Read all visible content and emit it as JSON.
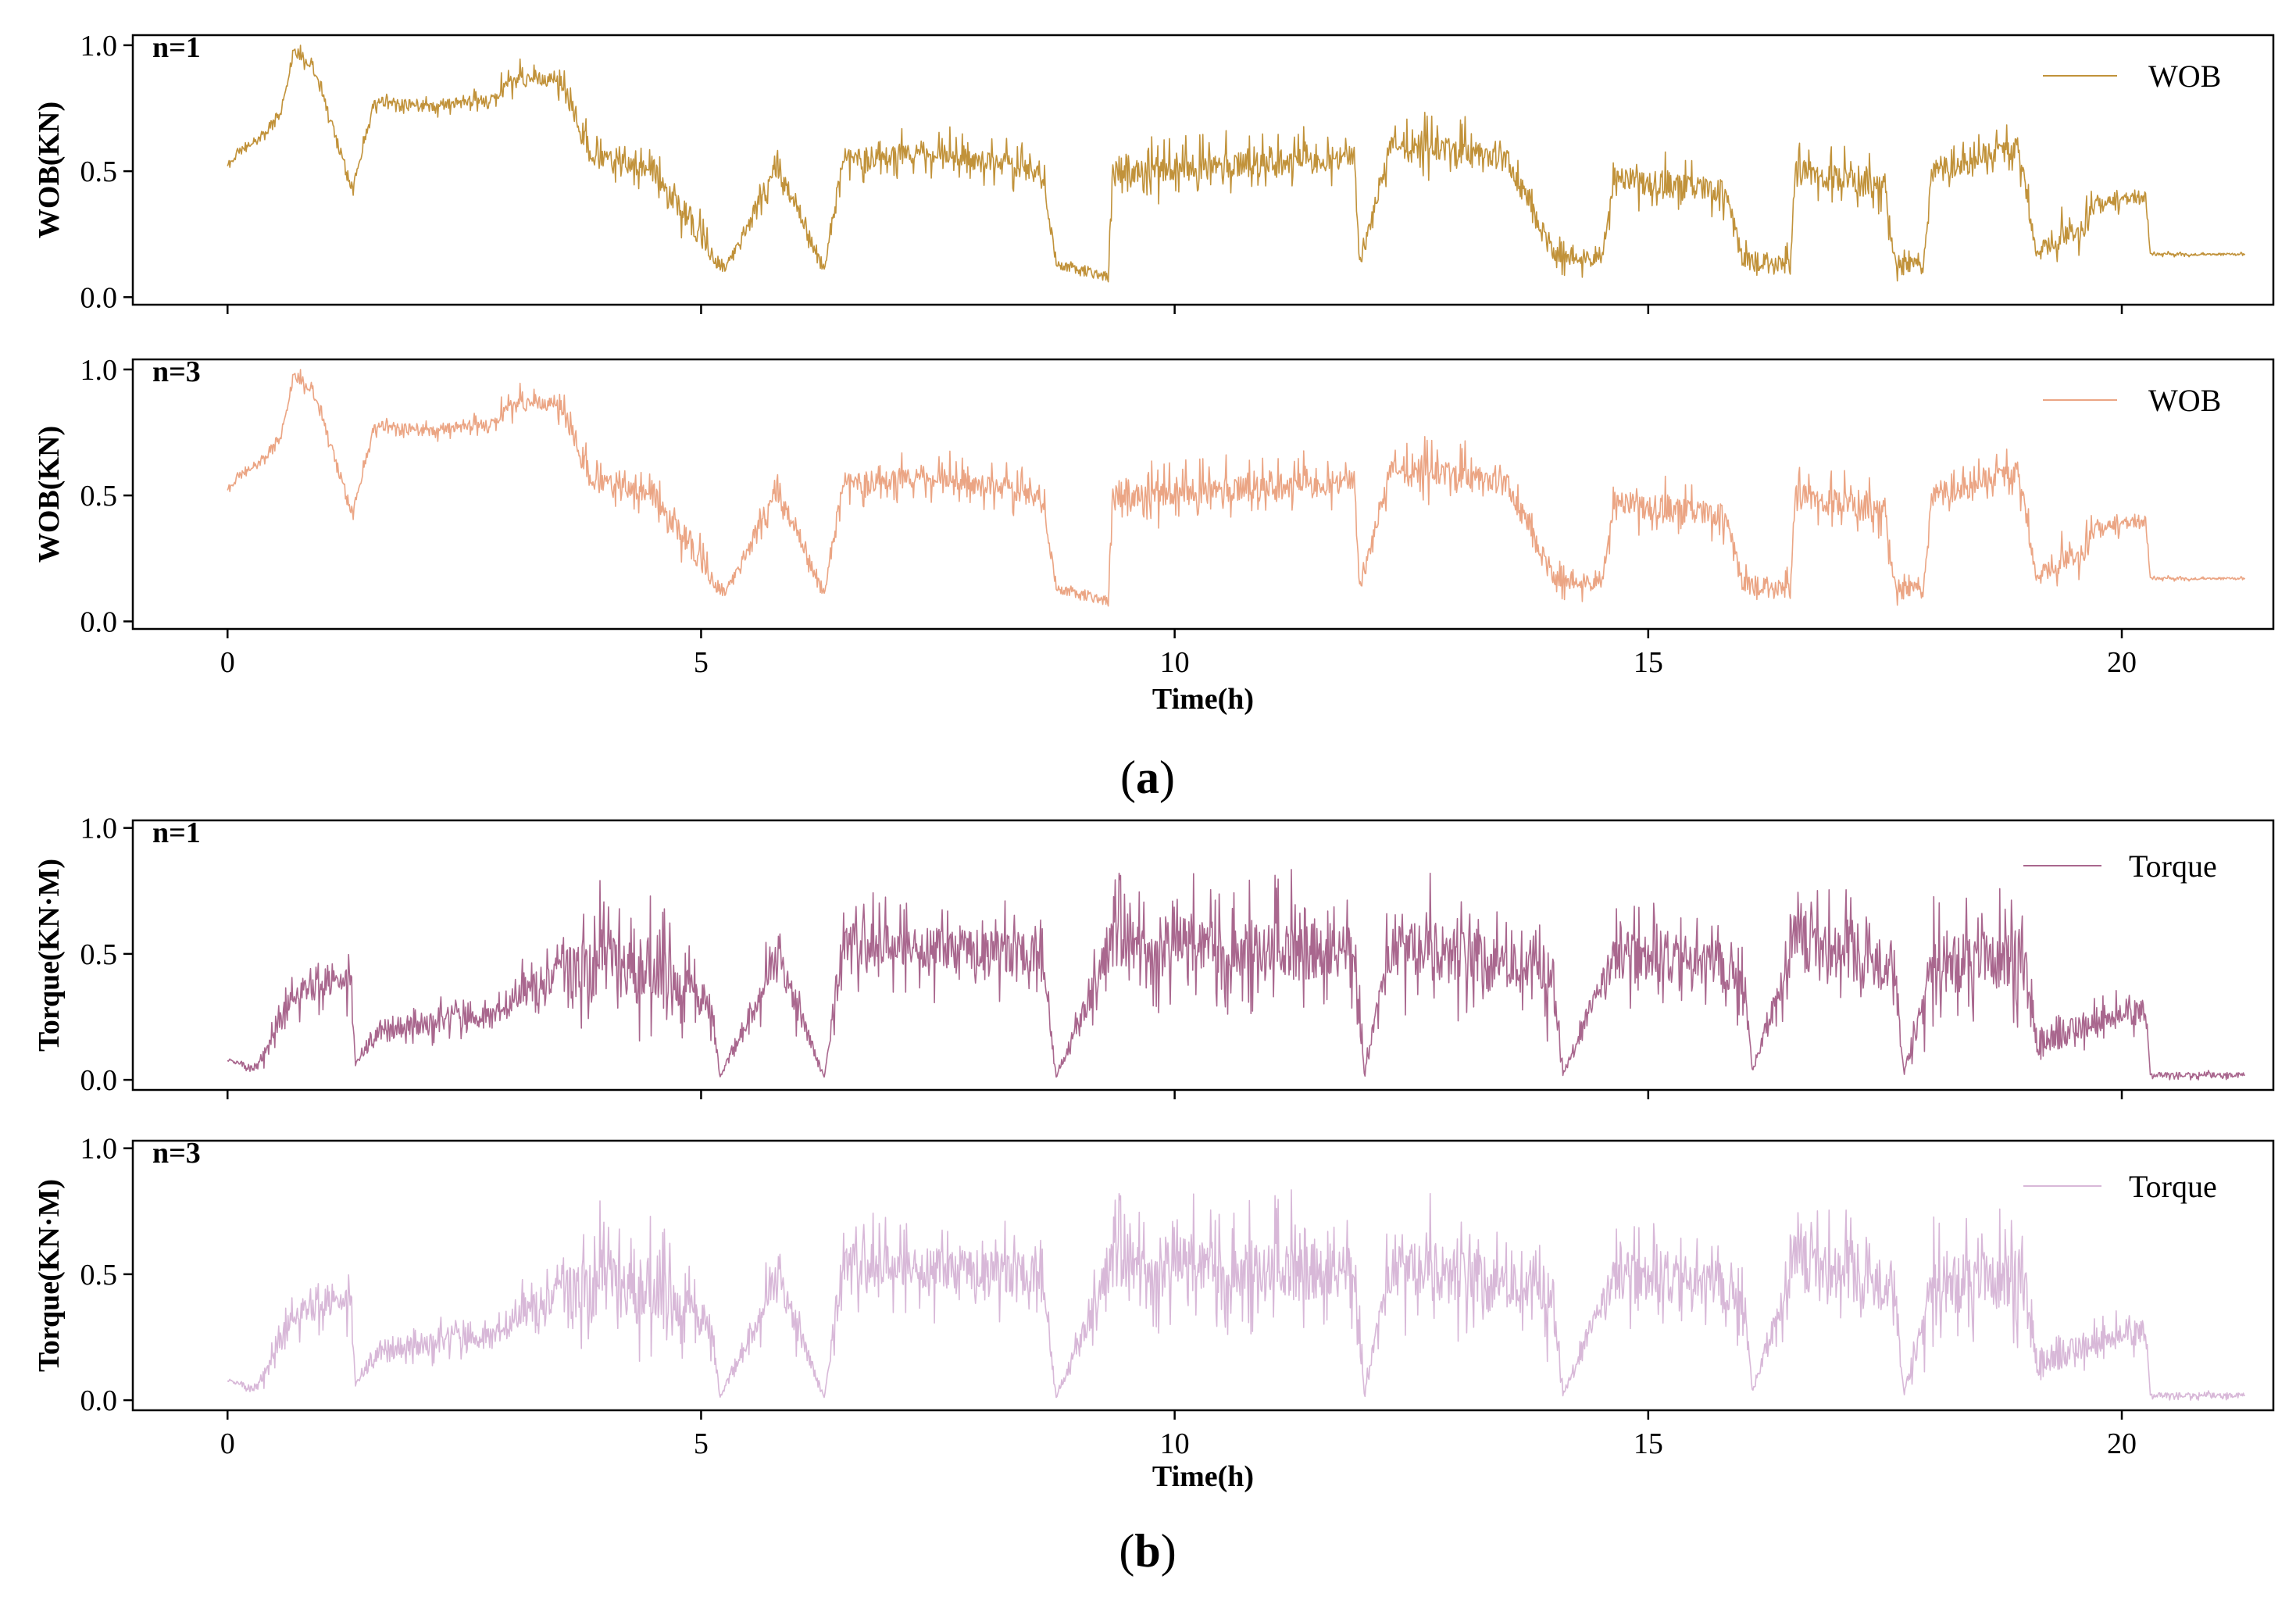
{
  "figure": {
    "caption_a": {
      "open": "(",
      "letter": "a",
      "close": ")"
    },
    "caption_b": {
      "open": "(",
      "letter": "b",
      "close": ")"
    }
  },
  "chart_data": [
    {
      "id": "wob-n1",
      "type": "line",
      "panel_tag": "n=1",
      "ylabel": "WOB(KN)",
      "xlabel": "",
      "legend": "WOB",
      "legend_position": "top-right",
      "color": "#c1923a",
      "stroke_width": 1.6,
      "xlim": [
        -1,
        21.6
      ],
      "ylim": [
        -0.03,
        1.04
      ],
      "xticks": [
        0,
        5,
        10,
        15,
        20
      ],
      "xtick_labels": [
        "",
        "",
        "",
        "",
        ""
      ],
      "yticks": [
        0.0,
        0.5,
        1.0
      ],
      "ytick_labels": [
        "0.0",
        "0.5",
        "1.0"
      ],
      "seed": 11,
      "segments": [
        [
          0,
          0.52,
          0.02,
          0.01
        ],
        [
          0.1,
          0.57,
          0.02,
          0.015
        ],
        [
          0.4,
          0.65,
          0.02,
          0.02
        ],
        [
          0.55,
          0.72,
          0.02,
          0.02
        ],
        [
          0.7,
          0.98,
          0.02,
          0.015
        ],
        [
          0.9,
          0.92,
          0.02,
          0.015
        ],
        [
          1.32,
          0.43,
          0.02,
          0.01
        ],
        [
          1.55,
          0.78,
          0.02,
          0.015
        ],
        [
          2.2,
          0.76,
          0.02,
          0.015
        ],
        [
          2.8,
          0.79,
          0.02,
          0.02
        ],
        [
          3.0,
          0.86,
          0.03,
          0.03
        ],
        [
          3.5,
          0.86,
          0.03,
          0.03
        ],
        [
          3.85,
          0.56,
          0.04,
          0.03
        ],
        [
          4.5,
          0.5,
          0.04,
          0.03
        ],
        [
          5.1,
          0.18,
          0.05,
          0.04
        ],
        [
          5.25,
          0.11,
          0.02,
          0.01
        ],
        [
          5.8,
          0.52,
          0.04,
          0.04
        ],
        [
          6.3,
          0.11,
          0.02,
          0.01
        ],
        [
          6.5,
          0.55,
          0.04,
          0.04
        ],
        [
          7.5,
          0.57,
          0.04,
          0.04
        ],
        [
          8.6,
          0.5,
          0.04,
          0.04
        ],
        [
          8.75,
          0.13,
          0.02,
          0.015
        ],
        [
          9.3,
          0.08,
          0.02,
          0.01
        ],
        [
          9.35,
          0.5,
          0.05,
          0.04
        ],
        [
          10.5,
          0.52,
          0.05,
          0.05
        ],
        [
          11.9,
          0.55,
          0.05,
          0.04
        ],
        [
          11.95,
          0.12,
          0.03,
          0.02
        ],
        [
          12.3,
          0.62,
          0.04,
          0.04
        ],
        [
          13.5,
          0.55,
          0.05,
          0.05
        ],
        [
          14.0,
          0.17,
          0.04,
          0.03
        ],
        [
          14.5,
          0.15,
          0.02,
          0.02
        ],
        [
          14.65,
          0.47,
          0.05,
          0.04
        ],
        [
          15.8,
          0.42,
          0.05,
          0.04
        ],
        [
          16.0,
          0.15,
          0.04,
          0.03
        ],
        [
          16.5,
          0.12,
          0.04,
          0.03
        ],
        [
          16.55,
          0.5,
          0.05,
          0.04
        ],
        [
          17.5,
          0.44,
          0.05,
          0.04
        ],
        [
          17.6,
          0.14,
          0.03,
          0.03
        ],
        [
          17.9,
          0.12,
          0.03,
          0.02
        ],
        [
          18.0,
          0.5,
          0.05,
          0.04
        ],
        [
          18.9,
          0.6,
          0.05,
          0.04
        ],
        [
          19.1,
          0.18,
          0.03,
          0.03
        ],
        [
          19.6,
          0.28,
          0.05,
          0.05
        ],
        [
          19.7,
          0.37,
          0.02,
          0.02
        ],
        [
          20.25,
          0.4,
          0.02,
          0.02
        ],
        [
          20.3,
          0.17,
          0.005,
          0.004
        ],
        [
          21.3,
          0.17,
          0.005,
          0.004
        ]
      ]
    },
    {
      "id": "wob-n3",
      "type": "line",
      "panel_tag": "n=3",
      "ylabel": "WOB(KN)",
      "xlabel": "Time(h)",
      "legend": "WOB",
      "legend_position": "top-right",
      "color": "#eba584",
      "stroke_width": 1.6,
      "xlim": [
        -1,
        21.6
      ],
      "ylim": [
        -0.03,
        1.04
      ],
      "xticks": [
        0,
        5,
        10,
        15,
        20
      ],
      "xtick_labels": [
        "0",
        "5",
        "10",
        "15",
        "20"
      ],
      "yticks": [
        0.0,
        0.5,
        1.0
      ],
      "ytick_labels": [
        "0.0",
        "0.5",
        "1.0"
      ],
      "seed": 11,
      "segments": [
        [
          0,
          0.52,
          0.02,
          0.01
        ],
        [
          0.1,
          0.57,
          0.02,
          0.015
        ],
        [
          0.4,
          0.65,
          0.02,
          0.02
        ],
        [
          0.55,
          0.72,
          0.02,
          0.02
        ],
        [
          0.7,
          0.98,
          0.02,
          0.015
        ],
        [
          0.9,
          0.92,
          0.02,
          0.015
        ],
        [
          1.32,
          0.43,
          0.02,
          0.01
        ],
        [
          1.55,
          0.78,
          0.02,
          0.015
        ],
        [
          2.2,
          0.76,
          0.02,
          0.015
        ],
        [
          2.8,
          0.79,
          0.02,
          0.02
        ],
        [
          3.0,
          0.86,
          0.03,
          0.03
        ],
        [
          3.5,
          0.86,
          0.03,
          0.03
        ],
        [
          3.85,
          0.56,
          0.04,
          0.03
        ],
        [
          4.5,
          0.5,
          0.04,
          0.03
        ],
        [
          5.1,
          0.18,
          0.05,
          0.04
        ],
        [
          5.25,
          0.11,
          0.02,
          0.01
        ],
        [
          5.8,
          0.52,
          0.04,
          0.04
        ],
        [
          6.3,
          0.11,
          0.02,
          0.01
        ],
        [
          6.5,
          0.55,
          0.04,
          0.04
        ],
        [
          7.5,
          0.57,
          0.04,
          0.04
        ],
        [
          8.6,
          0.5,
          0.04,
          0.04
        ],
        [
          8.75,
          0.13,
          0.02,
          0.015
        ],
        [
          9.3,
          0.08,
          0.02,
          0.01
        ],
        [
          9.35,
          0.5,
          0.05,
          0.04
        ],
        [
          10.5,
          0.52,
          0.05,
          0.05
        ],
        [
          11.9,
          0.55,
          0.05,
          0.04
        ],
        [
          11.95,
          0.12,
          0.03,
          0.02
        ],
        [
          12.3,
          0.62,
          0.04,
          0.04
        ],
        [
          13.5,
          0.55,
          0.05,
          0.05
        ],
        [
          14.0,
          0.17,
          0.04,
          0.03
        ],
        [
          14.5,
          0.15,
          0.02,
          0.02
        ],
        [
          14.65,
          0.47,
          0.05,
          0.04
        ],
        [
          15.8,
          0.42,
          0.05,
          0.04
        ],
        [
          16.0,
          0.15,
          0.04,
          0.03
        ],
        [
          16.5,
          0.12,
          0.04,
          0.03
        ],
        [
          16.55,
          0.5,
          0.05,
          0.04
        ],
        [
          17.5,
          0.44,
          0.05,
          0.04
        ],
        [
          17.6,
          0.14,
          0.03,
          0.03
        ],
        [
          17.9,
          0.12,
          0.03,
          0.02
        ],
        [
          18.0,
          0.5,
          0.05,
          0.04
        ],
        [
          18.9,
          0.6,
          0.05,
          0.04
        ],
        [
          19.1,
          0.18,
          0.03,
          0.03
        ],
        [
          19.6,
          0.28,
          0.05,
          0.05
        ],
        [
          19.7,
          0.37,
          0.02,
          0.02
        ],
        [
          20.25,
          0.4,
          0.02,
          0.02
        ],
        [
          20.3,
          0.17,
          0.005,
          0.004
        ],
        [
          21.3,
          0.17,
          0.005,
          0.004
        ]
      ]
    },
    {
      "id": "torque-n1",
      "type": "line",
      "panel_tag": "n=1",
      "ylabel": "Torque(KN·M)",
      "xlabel": "",
      "legend": "Torque",
      "legend_position": "top-right",
      "color": "#a9678e",
      "stroke_width": 1.6,
      "xlim": [
        -1,
        21.6
      ],
      "ylim": [
        -0.04,
        1.03
      ],
      "xticks": [
        0,
        5,
        10,
        15,
        20
      ],
      "xtick_labels": [
        "",
        "",
        "",
        "",
        ""
      ],
      "yticks": [
        0.0,
        0.5,
        1.0
      ],
      "ytick_labels": [
        "0.0",
        "0.5",
        "1.0"
      ],
      "seed": 23,
      "segments": [
        [
          0,
          0.08,
          0.005,
          0.002
        ],
        [
          0.3,
          0.04,
          0.015,
          0.01
        ],
        [
          0.7,
          0.35,
          0.05,
          0.05
        ],
        [
          1.3,
          0.4,
          0.05,
          0.05
        ],
        [
          1.35,
          0.06,
          0.005,
          0.003
        ],
        [
          1.6,
          0.2,
          0.04,
          0.03
        ],
        [
          2.8,
          0.25,
          0.04,
          0.03
        ],
        [
          3.1,
          0.35,
          0.05,
          0.05
        ],
        [
          3.8,
          0.45,
          0.12,
          0.12
        ],
        [
          4.5,
          0.45,
          0.12,
          0.12
        ],
        [
          5.1,
          0.3,
          0.06,
          0.05
        ],
        [
          5.2,
          0.01,
          0.005,
          0.003
        ],
        [
          5.8,
          0.5,
          0.08,
          0.07
        ],
        [
          6.3,
          0.01,
          0.005,
          0.003
        ],
        [
          6.5,
          0.55,
          0.08,
          0.07
        ],
        [
          8.6,
          0.5,
          0.08,
          0.07
        ],
        [
          8.75,
          0.01,
          0.005,
          0.003
        ],
        [
          9.35,
          0.55,
          0.1,
          0.1
        ],
        [
          11.9,
          0.5,
          0.12,
          0.1
        ],
        [
          12.0,
          0.02,
          0.02,
          0.01
        ],
        [
          12.3,
          0.55,
          0.12,
          0.1
        ],
        [
          14.0,
          0.4,
          0.1,
          0.08
        ],
        [
          14.1,
          0.02,
          0.01,
          0.01
        ],
        [
          14.65,
          0.5,
          0.1,
          0.08
        ],
        [
          16.0,
          0.45,
          0.1,
          0.08
        ],
        [
          16.1,
          0.03,
          0.01,
          0.01
        ],
        [
          16.55,
          0.55,
          0.1,
          0.08
        ],
        [
          17.6,
          0.45,
          0.1,
          0.08
        ],
        [
          17.7,
          0.02,
          0.01,
          0.01
        ],
        [
          18.0,
          0.45,
          0.12,
          0.1
        ],
        [
          19.0,
          0.5,
          0.12,
          0.1
        ],
        [
          19.1,
          0.15,
          0.06,
          0.05
        ],
        [
          19.7,
          0.22,
          0.05,
          0.04
        ],
        [
          20.25,
          0.28,
          0.05,
          0.04
        ],
        [
          20.3,
          0.02,
          0.01,
          0.008
        ],
        [
          21.3,
          0.02,
          0.01,
          0.008
        ]
      ]
    },
    {
      "id": "torque-n3",
      "type": "line",
      "panel_tag": "n=3",
      "ylabel": "Torque(KN·M)",
      "xlabel": "Time(h)",
      "legend": "Torque",
      "legend_position": "top-right",
      "color": "#d8b8d8",
      "stroke_width": 1.6,
      "xlim": [
        -1,
        21.6
      ],
      "ylim": [
        -0.04,
        1.03
      ],
      "xticks": [
        0,
        5,
        10,
        15,
        20
      ],
      "xtick_labels": [
        "0",
        "5",
        "10",
        "15",
        "20"
      ],
      "yticks": [
        0.0,
        0.5,
        1.0
      ],
      "ytick_labels": [
        "0.0",
        "0.5",
        "1.0"
      ],
      "seed": 23,
      "segments": [
        [
          0,
          0.08,
          0.005,
          0.002
        ],
        [
          0.3,
          0.04,
          0.015,
          0.01
        ],
        [
          0.7,
          0.35,
          0.05,
          0.05
        ],
        [
          1.3,
          0.4,
          0.05,
          0.05
        ],
        [
          1.35,
          0.06,
          0.005,
          0.003
        ],
        [
          1.6,
          0.2,
          0.04,
          0.03
        ],
        [
          2.8,
          0.25,
          0.04,
          0.03
        ],
        [
          3.1,
          0.35,
          0.05,
          0.05
        ],
        [
          3.8,
          0.45,
          0.12,
          0.12
        ],
        [
          4.5,
          0.45,
          0.12,
          0.12
        ],
        [
          5.1,
          0.3,
          0.06,
          0.05
        ],
        [
          5.2,
          0.01,
          0.005,
          0.003
        ],
        [
          5.8,
          0.5,
          0.08,
          0.07
        ],
        [
          6.3,
          0.01,
          0.005,
          0.003
        ],
        [
          6.5,
          0.55,
          0.08,
          0.07
        ],
        [
          8.6,
          0.5,
          0.08,
          0.07
        ],
        [
          8.75,
          0.01,
          0.005,
          0.003
        ],
        [
          9.35,
          0.55,
          0.1,
          0.1
        ],
        [
          11.9,
          0.5,
          0.12,
          0.1
        ],
        [
          12.0,
          0.02,
          0.02,
          0.01
        ],
        [
          12.3,
          0.55,
          0.12,
          0.1
        ],
        [
          14.0,
          0.4,
          0.1,
          0.08
        ],
        [
          14.1,
          0.02,
          0.01,
          0.01
        ],
        [
          14.65,
          0.5,
          0.1,
          0.08
        ],
        [
          16.0,
          0.45,
          0.1,
          0.08
        ],
        [
          16.1,
          0.03,
          0.01,
          0.01
        ],
        [
          16.55,
          0.55,
          0.1,
          0.08
        ],
        [
          17.6,
          0.45,
          0.1,
          0.08
        ],
        [
          17.7,
          0.02,
          0.01,
          0.01
        ],
        [
          18.0,
          0.45,
          0.12,
          0.1
        ],
        [
          19.0,
          0.5,
          0.12,
          0.1
        ],
        [
          19.1,
          0.15,
          0.06,
          0.05
        ],
        [
          19.7,
          0.22,
          0.05,
          0.04
        ],
        [
          20.25,
          0.28,
          0.05,
          0.04
        ],
        [
          20.3,
          0.02,
          0.01,
          0.008
        ],
        [
          21.3,
          0.02,
          0.01,
          0.008
        ]
      ]
    }
  ]
}
